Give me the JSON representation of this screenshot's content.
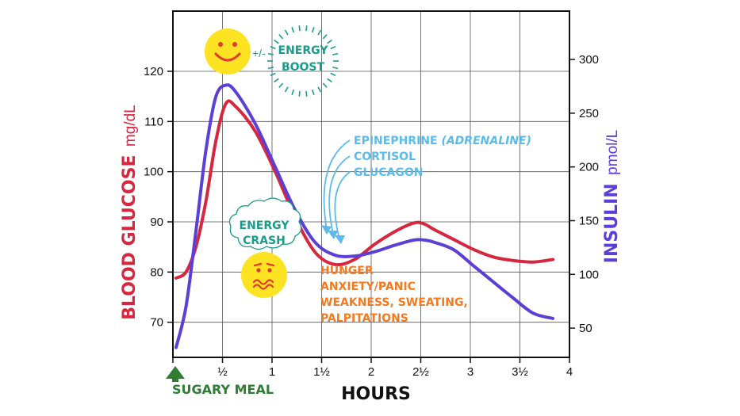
{
  "chart_data": {
    "type": "line",
    "xlabel": "HOURS",
    "ylabel_left_main": "BLOOD GLUCOSE",
    "ylabel_left_unit": "mg/dL",
    "ylabel_right_main": "INSULIN",
    "ylabel_right_unit": "pmol/L",
    "xlim": [
      0,
      4
    ],
    "ylim_left": [
      63,
      132
    ],
    "ylim_right": [
      22.8,
      345
    ],
    "x_ticks": [
      0,
      0.5,
      1,
      1.5,
      2,
      2.5,
      3,
      3.5,
      4
    ],
    "x_tick_labels": [
      "",
      "½",
      "1",
      "1½",
      "2",
      "2½",
      "3",
      "3½",
      "4"
    ],
    "y_left_ticks": [
      70,
      80,
      90,
      100,
      110,
      120
    ],
    "y_right_ticks": [
      50,
      100,
      150,
      200,
      250,
      300
    ],
    "grid": true,
    "colors": {
      "glucose": "#d7263d",
      "insulin": "#5b3fd6",
      "meal": "#2e7d32",
      "boost": "#1a9c8c",
      "hormones": "#5bbbea",
      "symptoms": "#f47a20",
      "face": "#fde321"
    },
    "series": [
      {
        "axis": "left",
        "x": [
          0,
          0.1,
          0.2,
          0.3,
          0.4,
          0.5,
          0.6,
          0.8,
          1.0,
          1.2,
          1.4,
          1.6,
          1.8,
          2.0,
          2.2,
          2.4,
          2.5,
          2.6,
          2.8,
          3.0,
          3.2,
          3.4,
          3.6,
          3.8
        ],
        "values": [
          78.8,
          80,
          85,
          94,
          106,
          113.5,
          113,
          108,
          100,
          91,
          84,
          81.5,
          82.5,
          85.5,
          88,
          89.8,
          89.6,
          88.5,
          86.5,
          84.5,
          83,
          82.3,
          82,
          82.5
        ]
      },
      {
        "axis": "right",
        "x": [
          0,
          0.1,
          0.2,
          0.3,
          0.4,
          0.5,
          0.6,
          0.8,
          1.0,
          1.2,
          1.4,
          1.6,
          1.8,
          2.0,
          2.2,
          2.4,
          2.5,
          2.6,
          2.8,
          3.0,
          3.2,
          3.4,
          3.6,
          3.8
        ],
        "values": [
          32,
          70,
          140,
          215,
          265,
          276,
          270,
          240,
          200,
          160,
          130,
          118,
          117,
          121,
          127,
          132,
          132,
          130,
          123,
          108,
          93,
          78,
          64,
          59
        ]
      }
    ],
    "annotations": {
      "meal": "SUGARY MEAL",
      "boost_prefix": "+/-",
      "boost_line1": "ENERGY",
      "boost_line2": "BOOST",
      "crash_line1": "ENERGY",
      "crash_line2": "CRASH",
      "hormone_1a": "EPINEPHRINE ",
      "hormone_1b": "(ADRENALINE)",
      "hormone_2": "CORTISOL",
      "hormone_3": "GLUCAGON",
      "symptom_1": "HUNGER",
      "symptom_2": "ANXIETY/PANIC",
      "symptom_3": "WEAKNESS, SWEATING,",
      "symptom_4": "PALPITATIONS"
    }
  }
}
